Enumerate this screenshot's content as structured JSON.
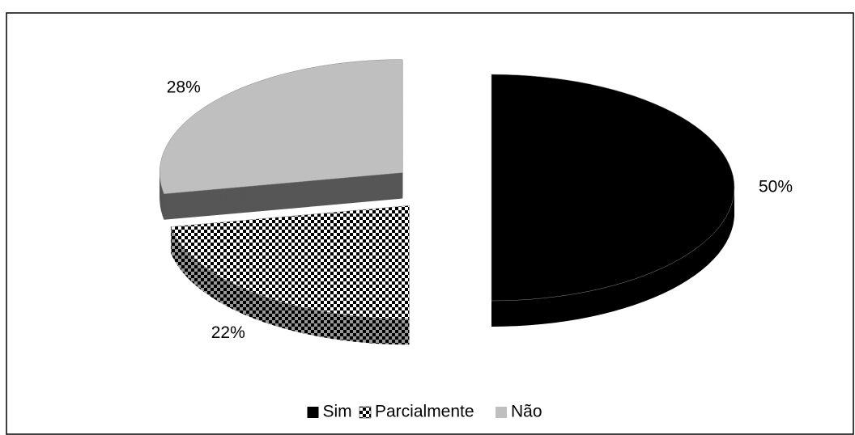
{
  "chart_data": {
    "type": "pie3d",
    "categories": [
      "Sim",
      "Parcialmente",
      "Não"
    ],
    "values": [
      50,
      22,
      28
    ],
    "value_labels": [
      "50%",
      "22%",
      "28%"
    ],
    "colors": [
      "#000000",
      "#ffffff",
      "#bfbfbf"
    ],
    "patterns": [
      "solid",
      "checkerboard",
      "solid"
    ],
    "exploded": true,
    "legend": "bottom"
  }
}
